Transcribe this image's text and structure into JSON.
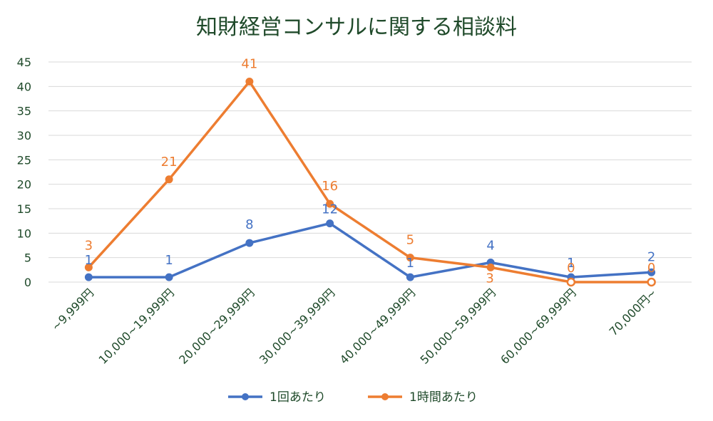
{
  "chart_data": {
    "type": "line",
    "title": "知財経営コンサルに関する相談料",
    "categories": [
      "~9,999円",
      "10,000~19,999円",
      "20,000~29,999円",
      "30,000~39,999円",
      "40,000~49,999円",
      "50,000~59,999円",
      "60,000~69,999円",
      "70,000円~"
    ],
    "ylim": [
      0,
      45
    ],
    "yticks": [
      0,
      5,
      10,
      15,
      20,
      25,
      30,
      35,
      40,
      45
    ],
    "grid": true,
    "legend_position": "bottom",
    "series": [
      {
        "name": "1回あたり",
        "color": "#4472c4",
        "values": [
          1,
          1,
          8,
          12,
          1,
          4,
          1,
          2
        ],
        "labels": [
          "1",
          "1",
          "8",
          "12",
          "1",
          "4",
          "1",
          "2"
        ]
      },
      {
        "name": "1時間あたり",
        "color": "#ed7d31",
        "values": [
          3,
          21,
          41,
          16,
          5,
          3,
          0,
          0
        ],
        "labels": [
          "3",
          "21",
          "41",
          "16",
          "5",
          "3",
          "0",
          "0"
        ]
      }
    ]
  }
}
